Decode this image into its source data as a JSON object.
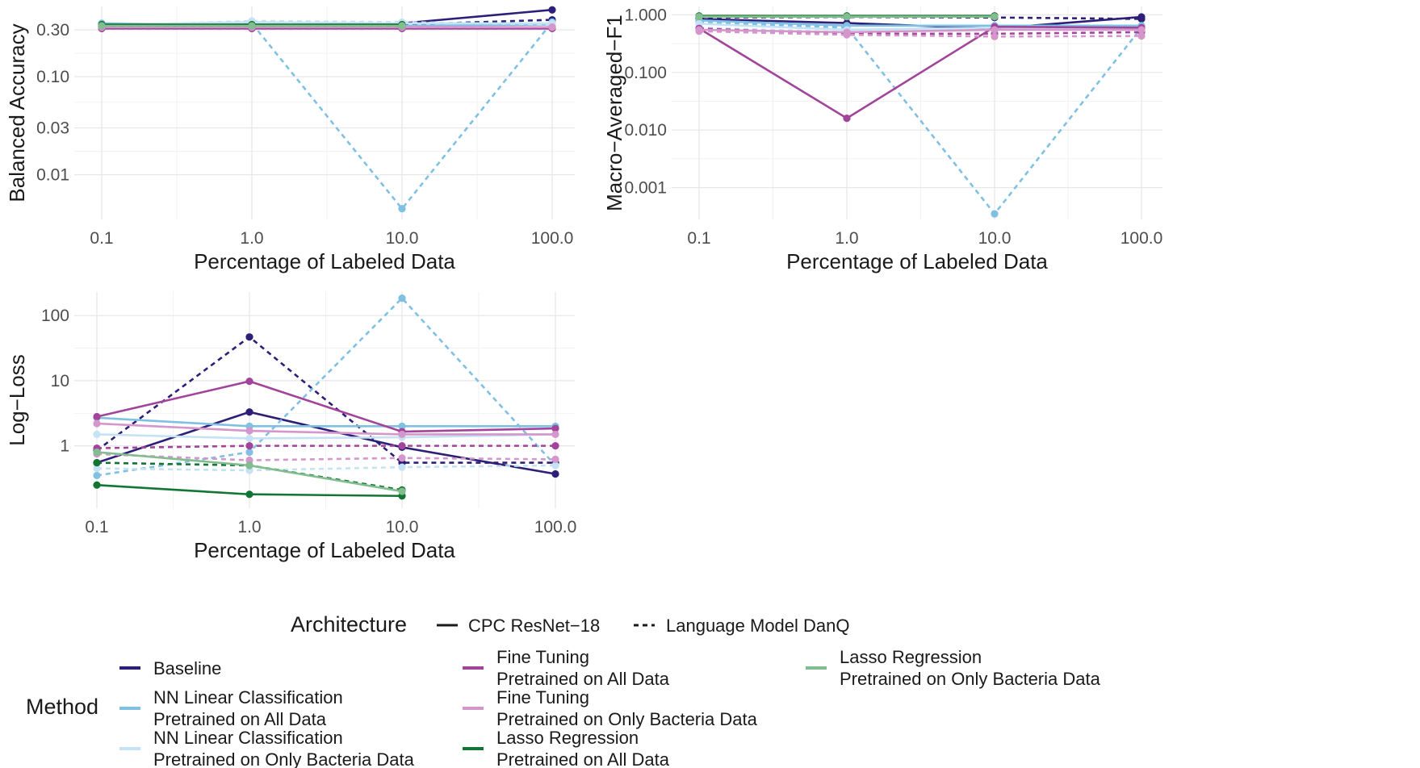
{
  "chart_data": [
    {
      "type": "line",
      "xlabel": "Percentage of Labeled Data",
      "ylabel": "Balanced Accuracy",
      "x": [
        0.1,
        1.0,
        10.0,
        100.0
      ],
      "x_tick_labels": [
        "0.1",
        "1.0",
        "10.0",
        "100.0"
      ],
      "x_scale": "log",
      "y_scale": "log",
      "ylim": [
        0.0035,
        0.52
      ],
      "y_ticks": [
        0.01,
        0.03,
        0.1,
        0.3
      ],
      "y_tick_labels": [
        "0.01",
        "0.03",
        "0.10",
        "0.30"
      ],
      "grid": true,
      "series": [
        {
          "method": "baseline",
          "arch": "cpc",
          "values": [
            0.33,
            0.31,
            0.35,
            0.48
          ]
        },
        {
          "method": "baseline",
          "arch": "lm",
          "values": [
            0.32,
            0.32,
            0.34,
            0.38
          ]
        },
        {
          "method": "nn_all",
          "arch": "cpc",
          "values": [
            0.35,
            0.34,
            0.33,
            0.34
          ]
        },
        {
          "method": "nn_all",
          "arch": "lm",
          "values": [
            0.34,
            0.35,
            0.0045,
            0.36
          ]
        },
        {
          "method": "nn_bacteria",
          "arch": "cpc",
          "values": [
            0.34,
            0.36,
            0.35,
            0.35
          ]
        },
        {
          "method": "nn_bacteria",
          "arch": "lm",
          "values": [
            0.33,
            0.37,
            0.36,
            0.34
          ]
        },
        {
          "method": "ft_all",
          "arch": "cpc",
          "values": [
            0.31,
            0.31,
            0.31,
            0.31
          ]
        },
        {
          "method": "ft_all",
          "arch": "lm",
          "values": [
            0.31,
            0.31,
            0.31,
            0.31
          ]
        },
        {
          "method": "ft_bacteria",
          "arch": "cpc",
          "values": [
            0.32,
            0.32,
            0.32,
            0.32
          ]
        },
        {
          "method": "ft_bacteria",
          "arch": "lm",
          "values": [
            0.32,
            0.32,
            0.32,
            0.32
          ]
        },
        {
          "method": "lasso_all",
          "arch": "cpc",
          "values": [
            0.34,
            0.34,
            0.34,
            null
          ]
        },
        {
          "method": "lasso_all",
          "arch": "lm",
          "values": [
            0.33,
            0.33,
            0.33,
            null
          ]
        },
        {
          "method": "lasso_bacteria",
          "arch": "cpc",
          "values": [
            0.33,
            0.33,
            0.33,
            null
          ]
        }
      ]
    },
    {
      "type": "line",
      "xlabel": "Percentage of Labeled Data",
      "ylabel": "Macro−Averaged−F1",
      "x": [
        0.1,
        1.0,
        10.0,
        100.0
      ],
      "x_tick_labels": [
        "0.1",
        "1.0",
        "10.0",
        "100.0"
      ],
      "x_scale": "log",
      "y_scale": "log",
      "ylim": [
        0.00028,
        1.4
      ],
      "y_ticks": [
        0.001,
        0.01,
        0.1,
        1.0
      ],
      "y_tick_labels": [
        "0.001",
        "0.010",
        "0.100",
        "1.000"
      ],
      "grid": true,
      "series": [
        {
          "method": "baseline",
          "arch": "cpc",
          "values": [
            0.85,
            0.72,
            0.58,
            0.92
          ]
        },
        {
          "method": "baseline",
          "arch": "lm",
          "values": [
            0.9,
            0.92,
            0.9,
            0.85
          ]
        },
        {
          "method": "nn_all",
          "arch": "cpc",
          "values": [
            0.8,
            0.65,
            0.65,
            0.65
          ]
        },
        {
          "method": "nn_all",
          "arch": "lm",
          "values": [
            0.75,
            0.6,
            0.00035,
            0.6
          ]
        },
        {
          "method": "nn_bacteria",
          "arch": "cpc",
          "values": [
            0.7,
            0.55,
            0.6,
            0.6
          ]
        },
        {
          "method": "nn_bacteria",
          "arch": "lm",
          "values": [
            0.6,
            0.5,
            0.55,
            0.55
          ]
        },
        {
          "method": "ft_all",
          "arch": "cpc",
          "values": [
            0.58,
            0.016,
            0.62,
            0.6
          ]
        },
        {
          "method": "ft_all",
          "arch": "lm",
          "values": [
            0.58,
            0.47,
            0.47,
            0.5
          ]
        },
        {
          "method": "ft_bacteria",
          "arch": "cpc",
          "values": [
            0.55,
            0.5,
            0.55,
            0.55
          ]
        },
        {
          "method": "ft_bacteria",
          "arch": "lm",
          "values": [
            0.52,
            0.45,
            0.42,
            0.43
          ]
        },
        {
          "method": "lasso_all",
          "arch": "cpc",
          "values": [
            0.96,
            0.96,
            0.96,
            null
          ]
        },
        {
          "method": "lasso_all",
          "arch": "lm",
          "values": [
            0.94,
            0.95,
            0.95,
            null
          ]
        },
        {
          "method": "lasso_bacteria",
          "arch": "cpc",
          "values": [
            0.93,
            0.93,
            0.93,
            null
          ]
        }
      ]
    },
    {
      "type": "line",
      "xlabel": "Percentage of Labeled Data",
      "ylabel": "Log−Loss",
      "x": [
        0.1,
        1.0,
        10.0,
        100.0
      ],
      "x_tick_labels": [
        "0.1",
        "1.0",
        "10.0",
        "100.0"
      ],
      "x_scale": "log",
      "y_scale": "log",
      "ylim": [
        0.11,
        230
      ],
      "y_ticks": [
        1,
        10,
        100
      ],
      "y_tick_labels": [
        "1",
        "10",
        "100"
      ],
      "grid": true,
      "series": [
        {
          "method": "baseline",
          "arch": "cpc",
          "values": [
            0.55,
            3.3,
            0.95,
            0.37
          ]
        },
        {
          "method": "baseline",
          "arch": "lm",
          "values": [
            0.85,
            47,
            0.55,
            0.55
          ]
        },
        {
          "method": "nn_all",
          "arch": "cpc",
          "values": [
            2.7,
            2.0,
            2.0,
            2.0
          ]
        },
        {
          "method": "nn_all",
          "arch": "lm",
          "values": [
            0.35,
            0.8,
            185,
            0.5
          ]
        },
        {
          "method": "nn_bacteria",
          "arch": "cpc",
          "values": [
            1.5,
            1.3,
            1.35,
            1.5
          ]
        },
        {
          "method": "nn_bacteria",
          "arch": "lm",
          "values": [
            0.45,
            0.42,
            0.47,
            0.5
          ]
        },
        {
          "method": "ft_all",
          "arch": "cpc",
          "values": [
            2.8,
            9.8,
            1.65,
            1.85
          ]
        },
        {
          "method": "ft_all",
          "arch": "lm",
          "values": [
            0.92,
            1.0,
            1.0,
            1.0
          ]
        },
        {
          "method": "ft_bacteria",
          "arch": "cpc",
          "values": [
            2.2,
            1.7,
            1.5,
            1.5
          ]
        },
        {
          "method": "ft_bacteria",
          "arch": "lm",
          "values": [
            0.75,
            0.6,
            0.65,
            0.62
          ]
        },
        {
          "method": "lasso_all",
          "arch": "cpc",
          "values": [
            0.25,
            0.18,
            0.17,
            null
          ]
        },
        {
          "method": "lasso_all",
          "arch": "lm",
          "values": [
            0.55,
            0.5,
            0.21,
            null
          ]
        },
        {
          "method": "lasso_bacteria",
          "arch": "cpc",
          "values": [
            0.8,
            0.5,
            0.2,
            null
          ]
        }
      ]
    }
  ],
  "legend": {
    "placement": "bottom",
    "architecture_title": "Architecture",
    "architectures": [
      {
        "key": "cpc",
        "label": "CPC ResNet−18",
        "line": "solid"
      },
      {
        "key": "lm",
        "label": "Language Model DanQ",
        "line": "dashed"
      }
    ],
    "method_title": "Method",
    "methods": [
      {
        "key": "baseline",
        "color": "#2d1e78",
        "line1": "Baseline",
        "line2": ""
      },
      {
        "key": "nn_all",
        "color": "#7fc0e3",
        "line1": "NN Linear Classification",
        "line2": "Pretrained on All Data"
      },
      {
        "key": "nn_bacteria",
        "color": "#c4e2f4",
        "line1": "NN Linear Classification",
        "line2": "Pretrained on Only Bacteria Data"
      },
      {
        "key": "ft_all",
        "color": "#a3449b",
        "line1": "Fine Tuning",
        "line2": "Pretrained on All Data"
      },
      {
        "key": "ft_bacteria",
        "color": "#d596cc",
        "line1": "Fine Tuning",
        "line2": "Pretrained on Only Bacteria Data"
      },
      {
        "key": "lasso_all",
        "color": "#137533",
        "line1": "Lasso Regression",
        "line2": "Pretrained on All Data"
      },
      {
        "key": "lasso_bacteria",
        "color": "#82bd8f",
        "line1": "Lasso Regression",
        "line2": "Pretrained on Only Bacteria Data"
      }
    ]
  }
}
